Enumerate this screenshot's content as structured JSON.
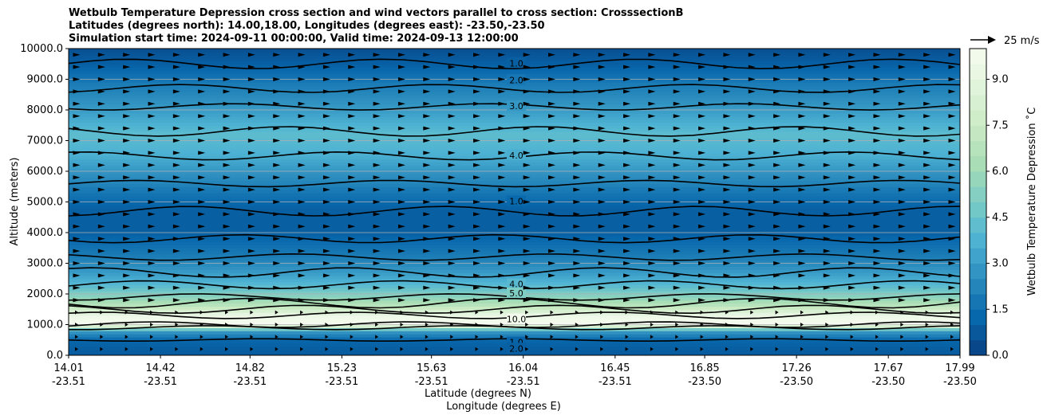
{
  "chart_data": {
    "type": "contour",
    "title_lines": [
      "Wetbulb Temperature Depression cross section and wind vectors parallel to cross section: CrosssectionB",
      "Latitudes (degrees north): 14.00,18.00, Longitudes (degrees east): -23.50,-23.50",
      "Simulation start time: 2024-09-11 00:00:00, Valid time: 2024-09-13 12:00:00"
    ],
    "xlabel_lat": "Latitude (degrees N)",
    "xlabel_lon": "Longitude (degrees E)",
    "ylabel": "Altitude (meters)",
    "ylim": [
      0,
      10000
    ],
    "yticks": [
      "0.0",
      "1000.0",
      "2000.0",
      "3000.0",
      "4000.0",
      "5000.0",
      "6000.0",
      "7000.0",
      "8000.0",
      "9000.0",
      "10000.0"
    ],
    "xticks_lat": [
      "14.01",
      "14.42",
      "14.82",
      "15.23",
      "15.63",
      "16.04",
      "16.45",
      "16.85",
      "17.26",
      "17.67",
      "17.99"
    ],
    "xticks_lon": [
      "-23.51",
      "-23.51",
      "-23.51",
      "-23.51",
      "-23.51",
      "-23.51",
      "-23.51",
      "-23.50",
      "-23.50",
      "-23.50",
      "-23.50"
    ],
    "grid": "horizontal",
    "colorbar": {
      "label": "Wetbulb Temperature Depression ˚C",
      "range": [
        0,
        10
      ],
      "ticks": [
        "0.0",
        "1.5",
        "3.0",
        "4.5",
        "6.0",
        "7.5",
        "9.0"
      ],
      "colormap": "GnBu_r",
      "colors": [
        "#084081",
        "#0868ac",
        "#2b8cbe",
        "#4eb3d3",
        "#7bccc4",
        "#a8ddb5",
        "#ccebc5",
        "#e0f3db",
        "#f7fcf0"
      ]
    },
    "quiver_key": "25 m/s",
    "wind_direction": "parallel, mostly eastward",
    "contour_labels": [
      "1.0",
      "2.0",
      "3.0",
      "4.0",
      "1.0",
      "4.0",
      "5.0",
      "10.0",
      "1.0",
      "2.0"
    ],
    "depression_profile": [
      {
        "altitude": 0,
        "value": 0.8
      },
      {
        "altitude": 500,
        "value": 1.2
      },
      {
        "altitude": 800,
        "value": 3.0
      },
      {
        "altitude": 1000,
        "value": 10.0
      },
      {
        "altitude": 1300,
        "value": 9.5
      },
      {
        "altitude": 1600,
        "value": 7.0
      },
      {
        "altitude": 1900,
        "value": 5.5
      },
      {
        "altitude": 2300,
        "value": 4.0
      },
      {
        "altitude": 2700,
        "value": 3.0
      },
      {
        "altitude": 3200,
        "value": 2.0
      },
      {
        "altitude": 4000,
        "value": 1.0
      },
      {
        "altitude": 4800,
        "value": 1.0
      },
      {
        "altitude": 5800,
        "value": 2.5
      },
      {
        "altitude": 6500,
        "value": 3.6
      },
      {
        "altitude": 7200,
        "value": 4.2
      },
      {
        "altitude": 8000,
        "value": 3.0
      },
      {
        "altitude": 8800,
        "value": 2.0
      },
      {
        "altitude": 9500,
        "value": 1.0
      },
      {
        "altitude": 10000,
        "value": 0.5
      }
    ]
  }
}
